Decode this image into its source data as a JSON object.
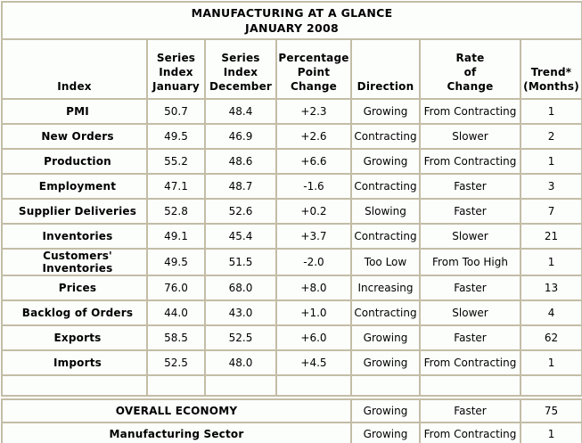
{
  "title": {
    "line1": "MANUFACTURING AT A GLANCE",
    "line2": "JANUARY 2008"
  },
  "headers": [
    "Index",
    "Series\nIndex\nJanuary",
    "Series\nIndex\nDecember",
    "Percentage\nPoint\nChange",
    "Direction",
    "Rate\nof\nChange",
    "Trend*\n(Months)"
  ],
  "rows": [
    {
      "index": "PMI",
      "jan": "50.7",
      "dec": "48.4",
      "change": "+2.3",
      "direction": "Growing",
      "rate": "From Contracting",
      "trend": "1"
    },
    {
      "index": "New Orders",
      "jan": "49.5",
      "dec": "46.9",
      "change": "+2.6",
      "direction": "Contracting",
      "rate": "Slower",
      "trend": "2"
    },
    {
      "index": "Production",
      "jan": "55.2",
      "dec": "48.6",
      "change": "+6.6",
      "direction": "Growing",
      "rate": "From Contracting",
      "trend": "1"
    },
    {
      "index": "Employment",
      "jan": "47.1",
      "dec": "48.7",
      "change": "-1.6",
      "direction": "Contracting",
      "rate": "Faster",
      "trend": "3"
    },
    {
      "index": "Supplier Deliveries",
      "jan": "52.8",
      "dec": "52.6",
      "change": "+0.2",
      "direction": "Slowing",
      "rate": "Faster",
      "trend": "7"
    },
    {
      "index": "Inventories",
      "jan": "49.1",
      "dec": "45.4",
      "change": "+3.7",
      "direction": "Contracting",
      "rate": "Slower",
      "trend": "21"
    },
    {
      "index": "Customers' Inventories",
      "jan": "49.5",
      "dec": "51.5",
      "change": "-2.0",
      "direction": "Too Low",
      "rate": "From Too High",
      "trend": "1"
    },
    {
      "index": "Prices",
      "jan": "76.0",
      "dec": "68.0",
      "change": "+8.0",
      "direction": "Increasing",
      "rate": "Faster",
      "trend": "13"
    },
    {
      "index": "Backlog of Orders",
      "jan": "44.0",
      "dec": "43.0",
      "change": "+1.0",
      "direction": "Contracting",
      "rate": "Slower",
      "trend": "4"
    },
    {
      "index": "Exports",
      "jan": "58.5",
      "dec": "52.5",
      "change": "+6.0",
      "direction": "Growing",
      "rate": "Faster",
      "trend": "62"
    },
    {
      "index": "Imports",
      "jan": "52.5",
      "dec": "48.0",
      "change": "+4.5",
      "direction": "Growing",
      "rate": "From Contracting",
      "trend": "1"
    }
  ],
  "summary_rows": [
    {
      "label": "OVERALL ECONOMY",
      "direction": "Growing",
      "rate": "Faster",
      "trend": "75"
    },
    {
      "label": "Manufacturing Sector",
      "direction": "Growing",
      "rate": "From Contracting",
      "trend": "1"
    }
  ],
  "colors": {
    "border": "#c3bda6",
    "cell_background": "#fcfefc",
    "text": "#000000"
  }
}
